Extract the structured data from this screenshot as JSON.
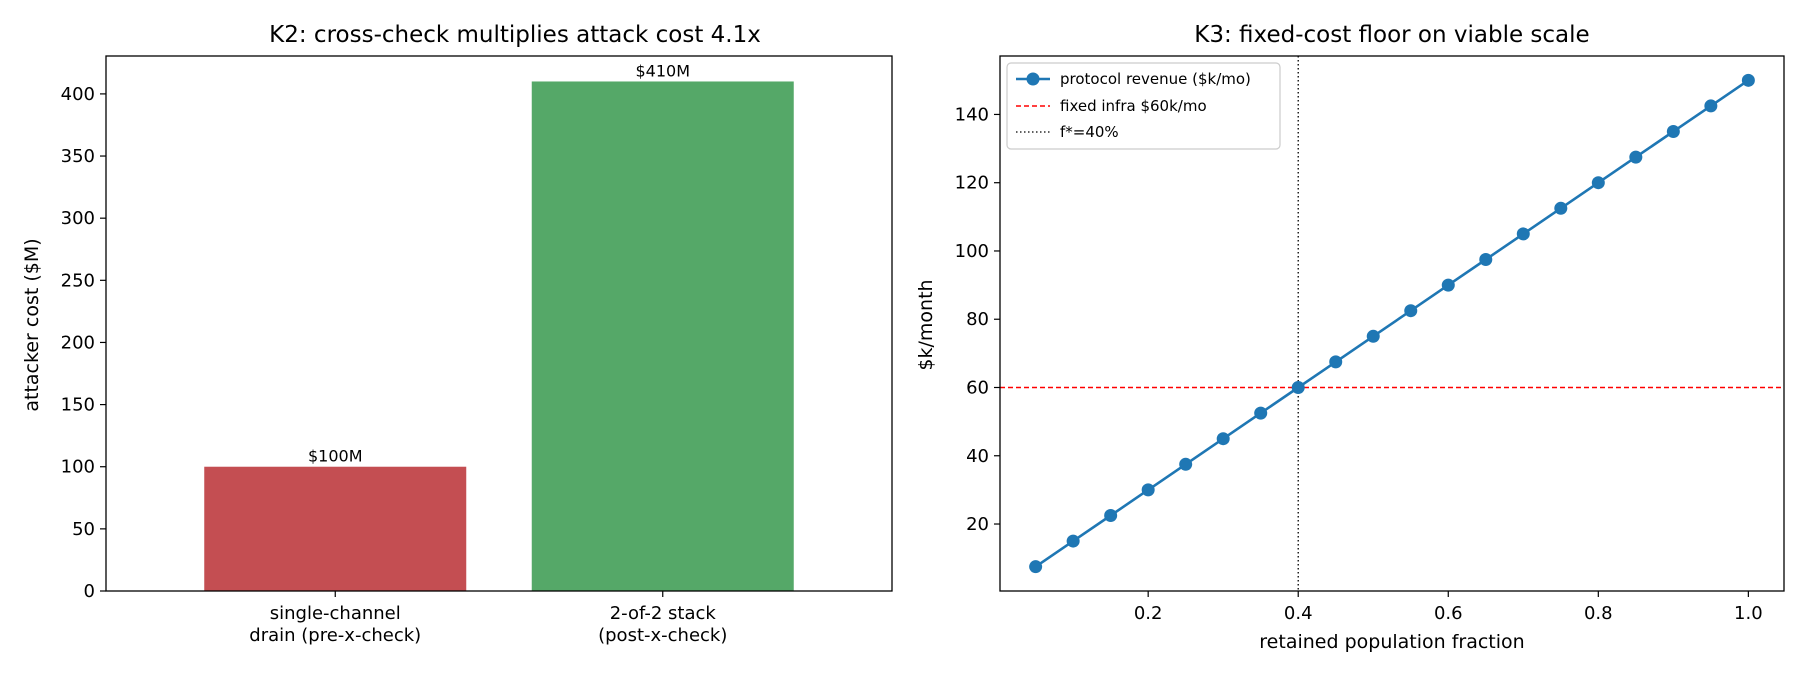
{
  "chart_data": [
    {
      "type": "bar",
      "title": "K2: cross-check multiplies attack cost 4.1x",
      "xlabel": "",
      "ylabel": "attacker cost ($M)",
      "categories": [
        [
          "single-channel",
          "drain (pre-x-check)"
        ],
        [
          "2-of-2 stack",
          "(post-x-check)"
        ]
      ],
      "values": [
        100,
        410
      ],
      "data_labels": [
        "$100M",
        "$410M"
      ],
      "colors": [
        "#c44e52",
        "#55a868"
      ],
      "ylim": [
        0,
        430.5
      ],
      "yticks": [
        0,
        50,
        100,
        150,
        200,
        250,
        300,
        350,
        400
      ],
      "grid": false
    },
    {
      "type": "line",
      "title": "K3: fixed-cost floor on viable scale",
      "xlabel": "retained population fraction",
      "ylabel": "$k/month",
      "x": [
        0.05,
        0.1,
        0.15,
        0.2,
        0.25,
        0.3,
        0.35,
        0.4,
        0.45,
        0.5,
        0.55,
        0.6,
        0.65,
        0.7,
        0.75,
        0.8,
        0.85,
        0.9,
        0.95,
        1.0
      ],
      "series": [
        {
          "name": "protocol revenue ($k/mo)",
          "values": [
            7.5,
            15,
            22.5,
            30,
            37.5,
            45,
            52.5,
            60,
            67.5,
            75,
            82.5,
            90,
            97.5,
            105,
            112.5,
            120,
            127.5,
            135,
            142.5,
            150
          ],
          "color": "#1f77b4",
          "marker": "circle"
        }
      ],
      "reference_lines": [
        {
          "orientation": "horizontal",
          "value": 60,
          "label": "fixed infra $60k/mo",
          "color": "#ff0000",
          "style": "dashed"
        },
        {
          "orientation": "vertical",
          "value": 0.4,
          "label": "f*=40%",
          "color": "#000000",
          "style": "dotted"
        }
      ],
      "xlim": [
        0.0025,
        1.0475
      ],
      "ylim": [
        0.375,
        157.125
      ],
      "xticks": [
        0.2,
        0.4,
        0.6,
        0.8,
        1.0
      ],
      "yticks": [
        20,
        40,
        60,
        80,
        100,
        120,
        140
      ],
      "legend": "top-left",
      "grid": false
    }
  ]
}
